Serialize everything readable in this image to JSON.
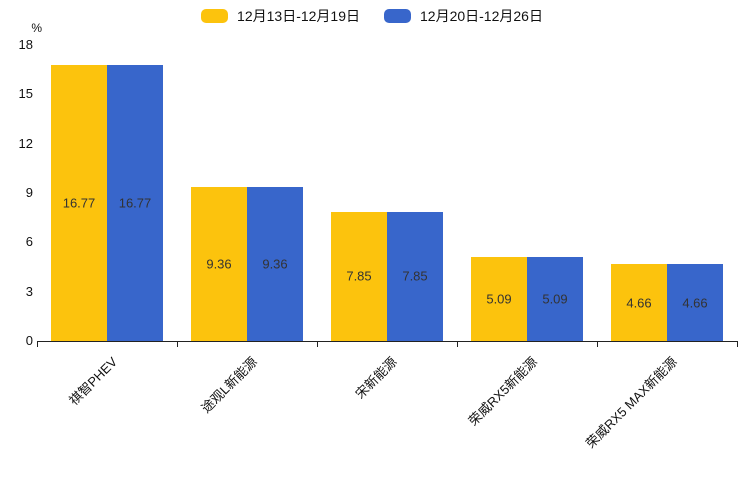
{
  "legend": [
    {
      "label": "12月13日-12月19日",
      "color": "#FCC30D"
    },
    {
      "label": "12月20日-12月26日",
      "color": "#3866CB"
    }
  ],
  "chart_data": {
    "type": "bar",
    "categories": [
      "祺智PHEV",
      "途观L新能源",
      "宋新能源",
      "荣威RX5新能源",
      "荣威RX5 MAX新能源"
    ],
    "series": [
      {
        "name": "12月13日-12月19日",
        "color": "#FCC30D",
        "values": [
          16.77,
          9.36,
          7.85,
          5.09,
          4.66
        ]
      },
      {
        "name": "12月20日-12月26日",
        "color": "#3866CB",
        "values": [
          16.77,
          9.36,
          7.85,
          5.09,
          4.66
        ]
      }
    ],
    "title": "",
    "xlabel": "",
    "ylabel": "%",
    "ylim": [
      0,
      18
    ],
    "yticks": [
      0,
      3,
      6,
      9,
      12,
      15,
      18
    ],
    "grid": false,
    "legend_position": "top",
    "value_labels": "inside-center",
    "x_label_rotation": -45
  }
}
